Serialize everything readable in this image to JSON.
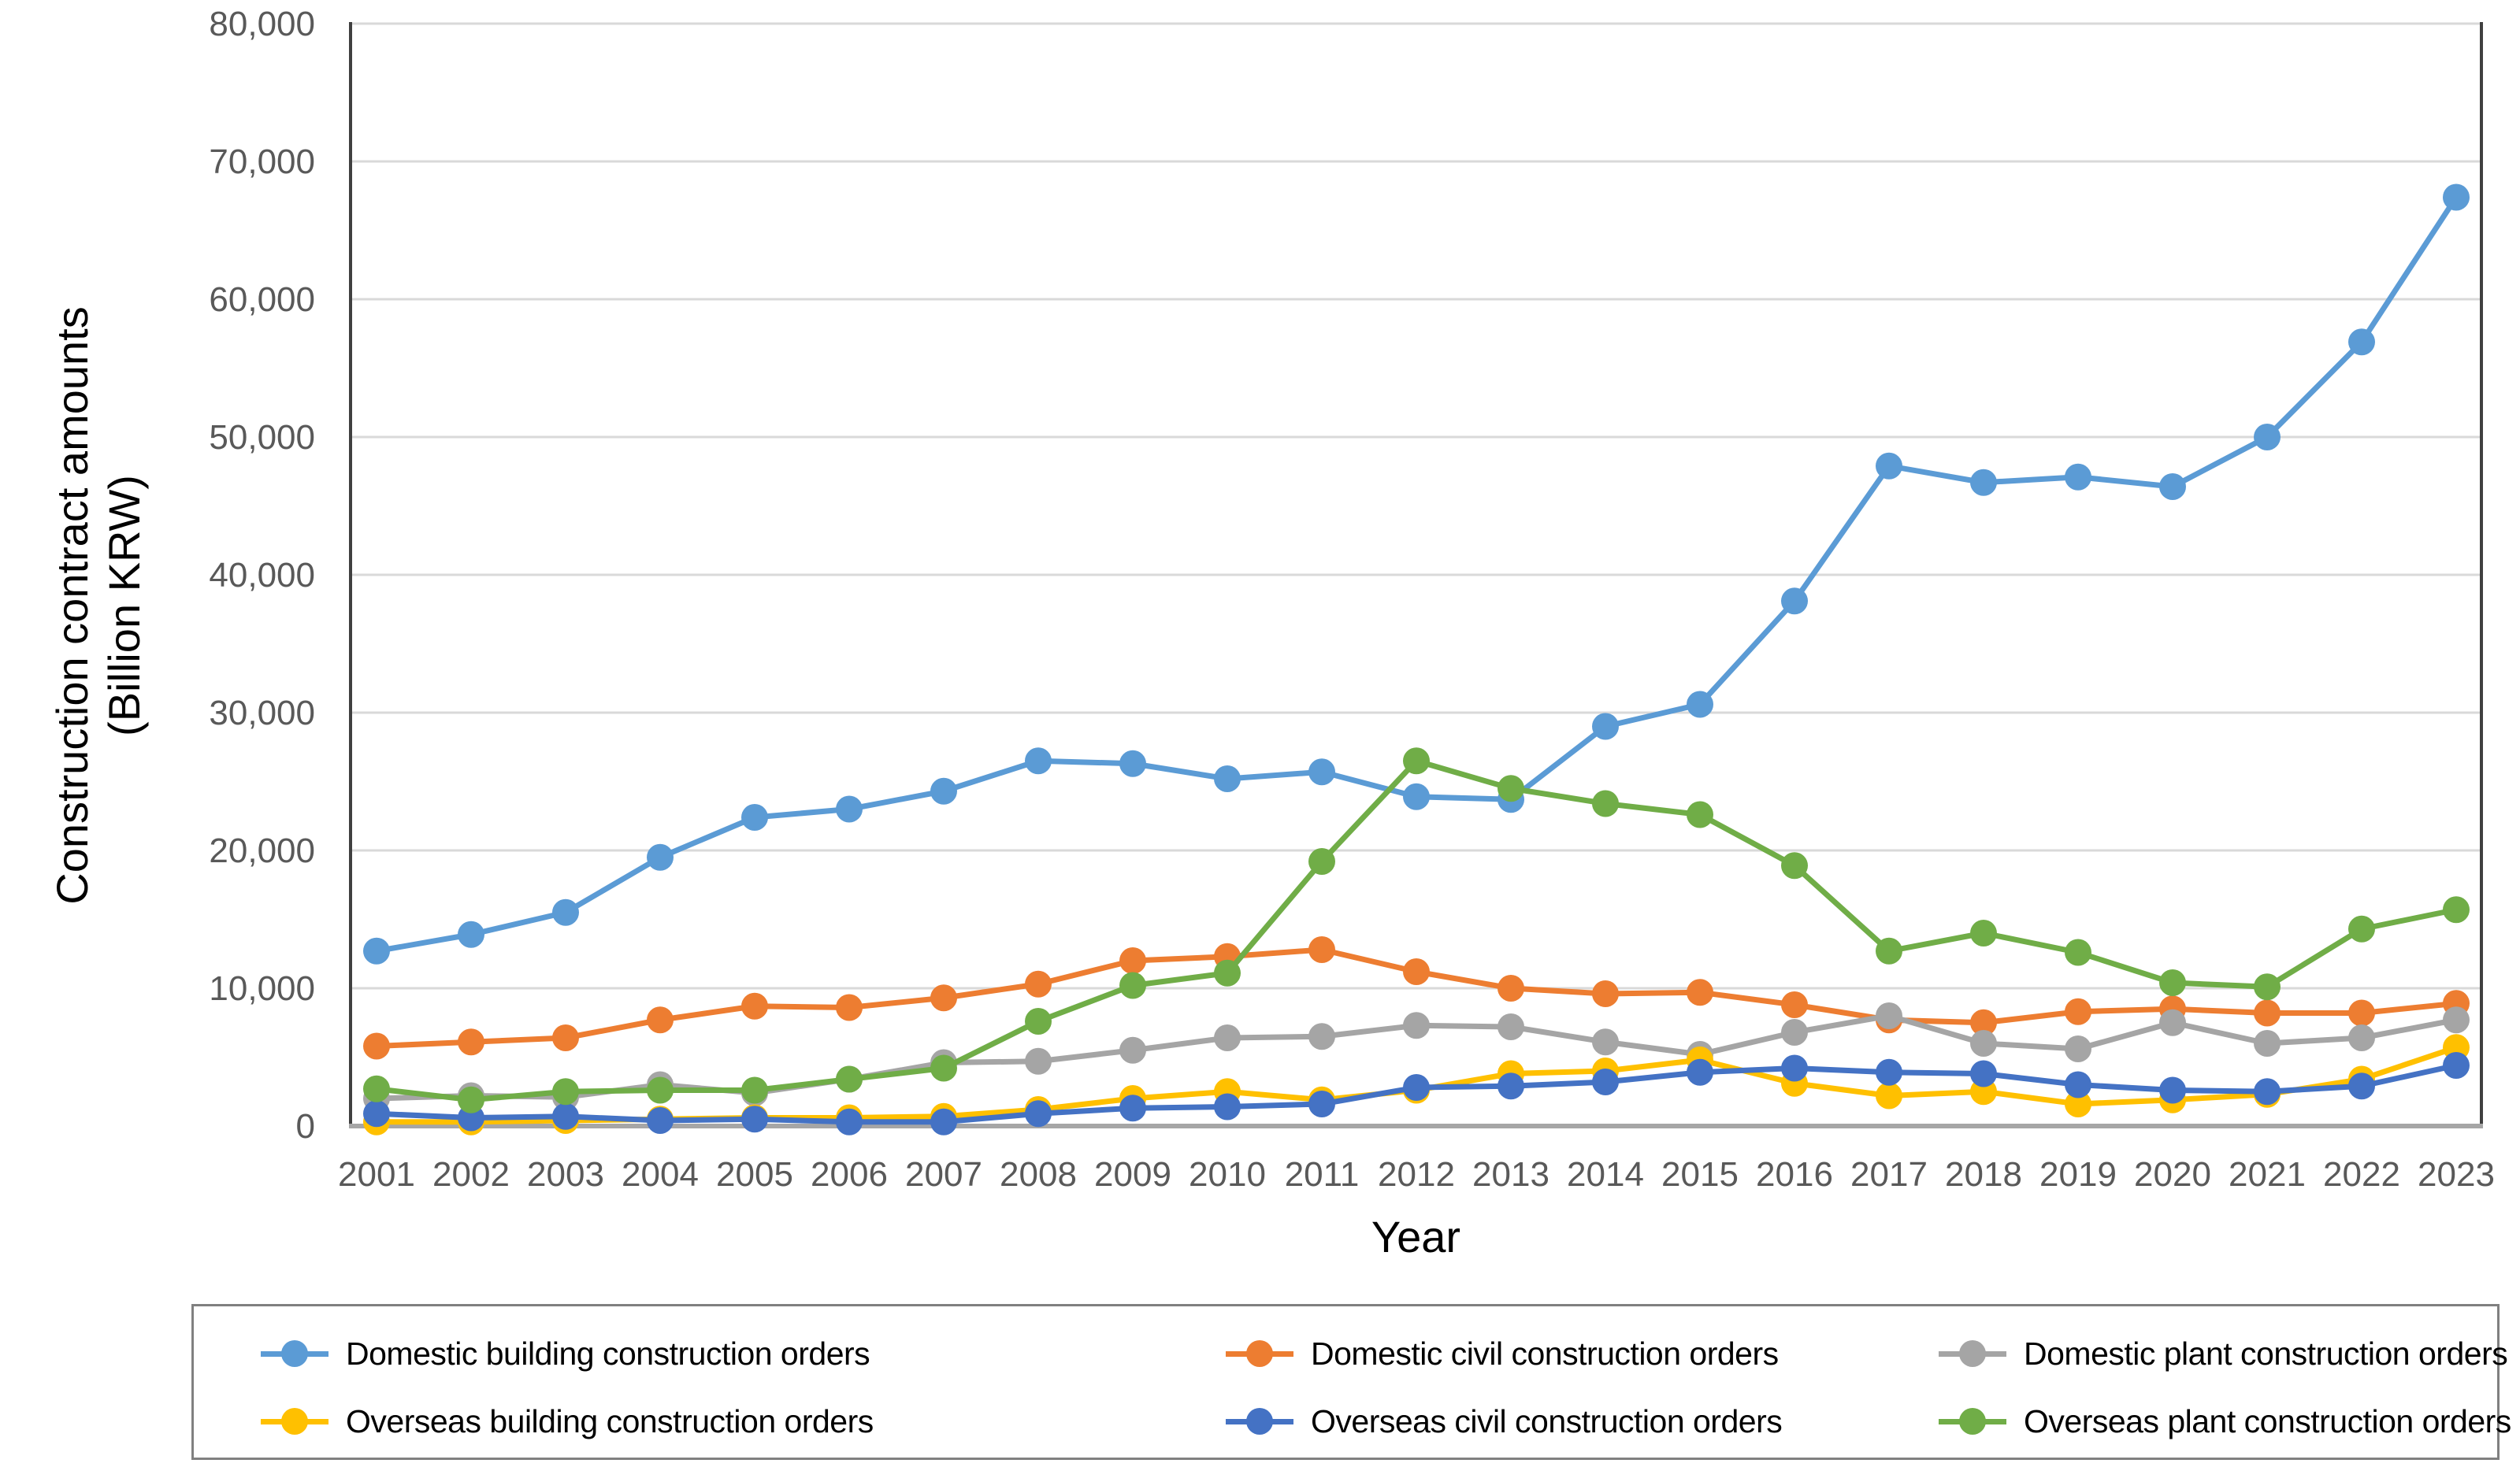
{
  "chart_data": {
    "type": "line",
    "title": "",
    "xlabel": "Year",
    "ylabel_line1": "Construction contract amounts",
    "ylabel_line2": "(Billion KRW)",
    "ylim": [
      0,
      80000
    ],
    "grid": true,
    "legend_position": "bottom",
    "ytick_values": [
      0,
      10000,
      20000,
      30000,
      40000,
      50000,
      60000,
      70000,
      80000
    ],
    "ytick_labels": [
      "0",
      "10,000",
      "20,000",
      "30,000",
      "40,000",
      "50,000",
      "60,000",
      "70,000",
      "80,000"
    ],
    "categories": [
      2001,
      2002,
      2003,
      2004,
      2005,
      2006,
      2007,
      2008,
      2009,
      2010,
      2011,
      2012,
      2013,
      2014,
      2015,
      2016,
      2017,
      2018,
      2019,
      2020,
      2021,
      2022,
      2023
    ],
    "series": [
      {
        "name": "Domestic building construction orders",
        "color": "#5B9BD5",
        "values": [
          12700,
          13900,
          15500,
          19500,
          22400,
          23000,
          24300,
          26500,
          26300,
          25200,
          25700,
          23900,
          23700,
          29000,
          30600,
          38100,
          47900,
          46700,
          47100,
          46400,
          50000,
          56900,
          67400
        ]
      },
      {
        "name": "Domestic civil construction orders",
        "color": "#ED7D31",
        "values": [
          5800,
          6100,
          6400,
          7700,
          8700,
          8600,
          9300,
          10300,
          12000,
          12300,
          12800,
          11200,
          10000,
          9600,
          9700,
          8800,
          7700,
          7500,
          8300,
          8500,
          8200,
          8200,
          8900
        ]
      },
      {
        "name": "Domestic plant construction orders",
        "color": "#A5A5A5",
        "values": [
          2000,
          2200,
          2100,
          3000,
          2400,
          3400,
          4600,
          4700,
          5500,
          6400,
          6500,
          7300,
          7200,
          6100,
          5200,
          6800,
          8000,
          6000,
          5600,
          7500,
          6000,
          6400,
          7700
        ]
      },
      {
        "name": "Overseas building construction orders",
        "color": "#FFC000",
        "values": [
          300,
          300,
          400,
          500,
          600,
          600,
          700,
          1200,
          2000,
          2500,
          1900,
          2600,
          3800,
          4000,
          4800,
          3100,
          2200,
          2500,
          1600,
          1900,
          2300,
          3400,
          5700
        ]
      },
      {
        "name": "Overseas civil construction orders",
        "color": "#4472C4",
        "values": [
          900,
          600,
          700,
          400,
          500,
          300,
          300,
          900,
          1300,
          1400,
          1600,
          2800,
          2900,
          3200,
          3900,
          4200,
          3900,
          3800,
          3000,
          2600,
          2500,
          2900,
          4400
        ]
      },
      {
        "name": "Overseas plant construction orders",
        "color": "#70AD47",
        "values": [
          2700,
          1900,
          2500,
          2600,
          2600,
          3400,
          4200,
          7600,
          10200,
          11100,
          19200,
          26500,
          24500,
          23400,
          22600,
          18900,
          12700,
          14000,
          12600,
          10400,
          10100,
          14300,
          15700
        ]
      }
    ]
  },
  "legend": {
    "items": [
      {
        "label": "Domestic building construction orders",
        "color": "#5B9BD5"
      },
      {
        "label": "Domestic civil construction orders",
        "color": "#ED7D31"
      },
      {
        "label": "Domestic plant construction orders",
        "color": "#A5A5A5"
      },
      {
        "label": "Overseas building construction orders",
        "color": "#FFC000"
      },
      {
        "label": "Overseas civil construction orders",
        "color": "#4472C4"
      },
      {
        "label": "Overseas plant construction orders",
        "color": "#70AD47"
      }
    ]
  },
  "style": {
    "gridline_color": "#D9D9D9",
    "side_border_color": "#404040",
    "bottom_axis_color": "#A6A6A6",
    "tick_label_color": "#595959"
  }
}
